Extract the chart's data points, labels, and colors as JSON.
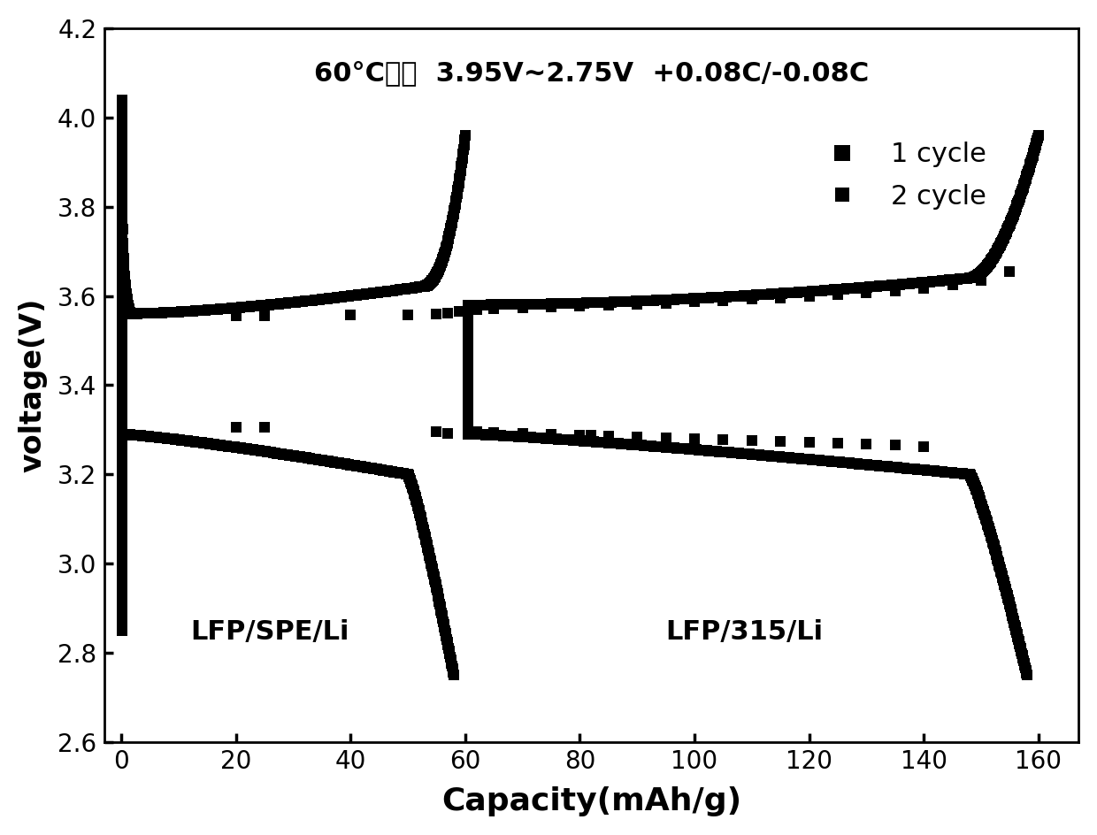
{
  "title": "60°C测试  3.95V~2.75V  +0.08C/-0.08C",
  "xlabel": "Capacity(mAh/g)",
  "ylabel": "voltage(V)",
  "xlim": [
    -3,
    167
  ],
  "ylim": [
    2.6,
    4.2
  ],
  "xticks": [
    0,
    20,
    40,
    60,
    80,
    100,
    120,
    140,
    160
  ],
  "yticks": [
    2.6,
    2.8,
    3.0,
    3.2,
    3.4,
    3.6,
    3.8,
    4.0,
    4.2
  ],
  "legend_labels": [
    "1 cycle",
    "2 cycle"
  ],
  "label_LFP_SPE": "LFP/SPE/Li",
  "label_LFP_315": "LFP/315/Li",
  "background_color": "#ffffff",
  "line_color": "#000000",
  "thick_lw": 8.0,
  "marker": "s",
  "markersize_c1": 9,
  "markersize_c2": 9
}
